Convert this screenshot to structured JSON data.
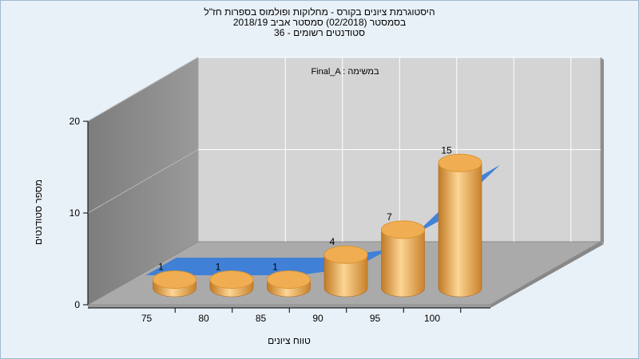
{
  "header": {
    "title_line1": "היסטוגרמת ציונים בקורס - מחלוקות ופולמוס בספרות חז\"ל",
    "title_line2": "בסמסטר  (02/2018)  סמסטר אביב 2018/19",
    "title_line3": "סטודנטים רשומים - 36"
  },
  "chart_data": {
    "type": "bar",
    "categories": [
      "75",
      "80",
      "85",
      "90",
      "95",
      "100"
    ],
    "values": [
      1,
      1,
      1,
      4,
      7,
      15
    ],
    "data_labels": [
      "1",
      "1",
      "1",
      "4",
      "7",
      "15"
    ],
    "line_values": [
      0,
      0,
      0,
      1,
      5,
      12
    ],
    "annotation": "Final_A : במשימה",
    "xlabel": "טווח ציונים",
    "ylabel": "מספר סטודנטים",
    "y_ticks": [
      "0",
      "10",
      "20"
    ],
    "ylim": [
      0,
      20
    ],
    "grid": true,
    "colors": {
      "bar_light": "#fbd08a",
      "bar_mid": "#f0ad52",
      "bar_dark": "#b36a1a",
      "line": "#3a7dd8",
      "back_wall": "#d3d3d3",
      "side_wall": "#8d8d8d",
      "floor": "#a9a9a9"
    }
  }
}
